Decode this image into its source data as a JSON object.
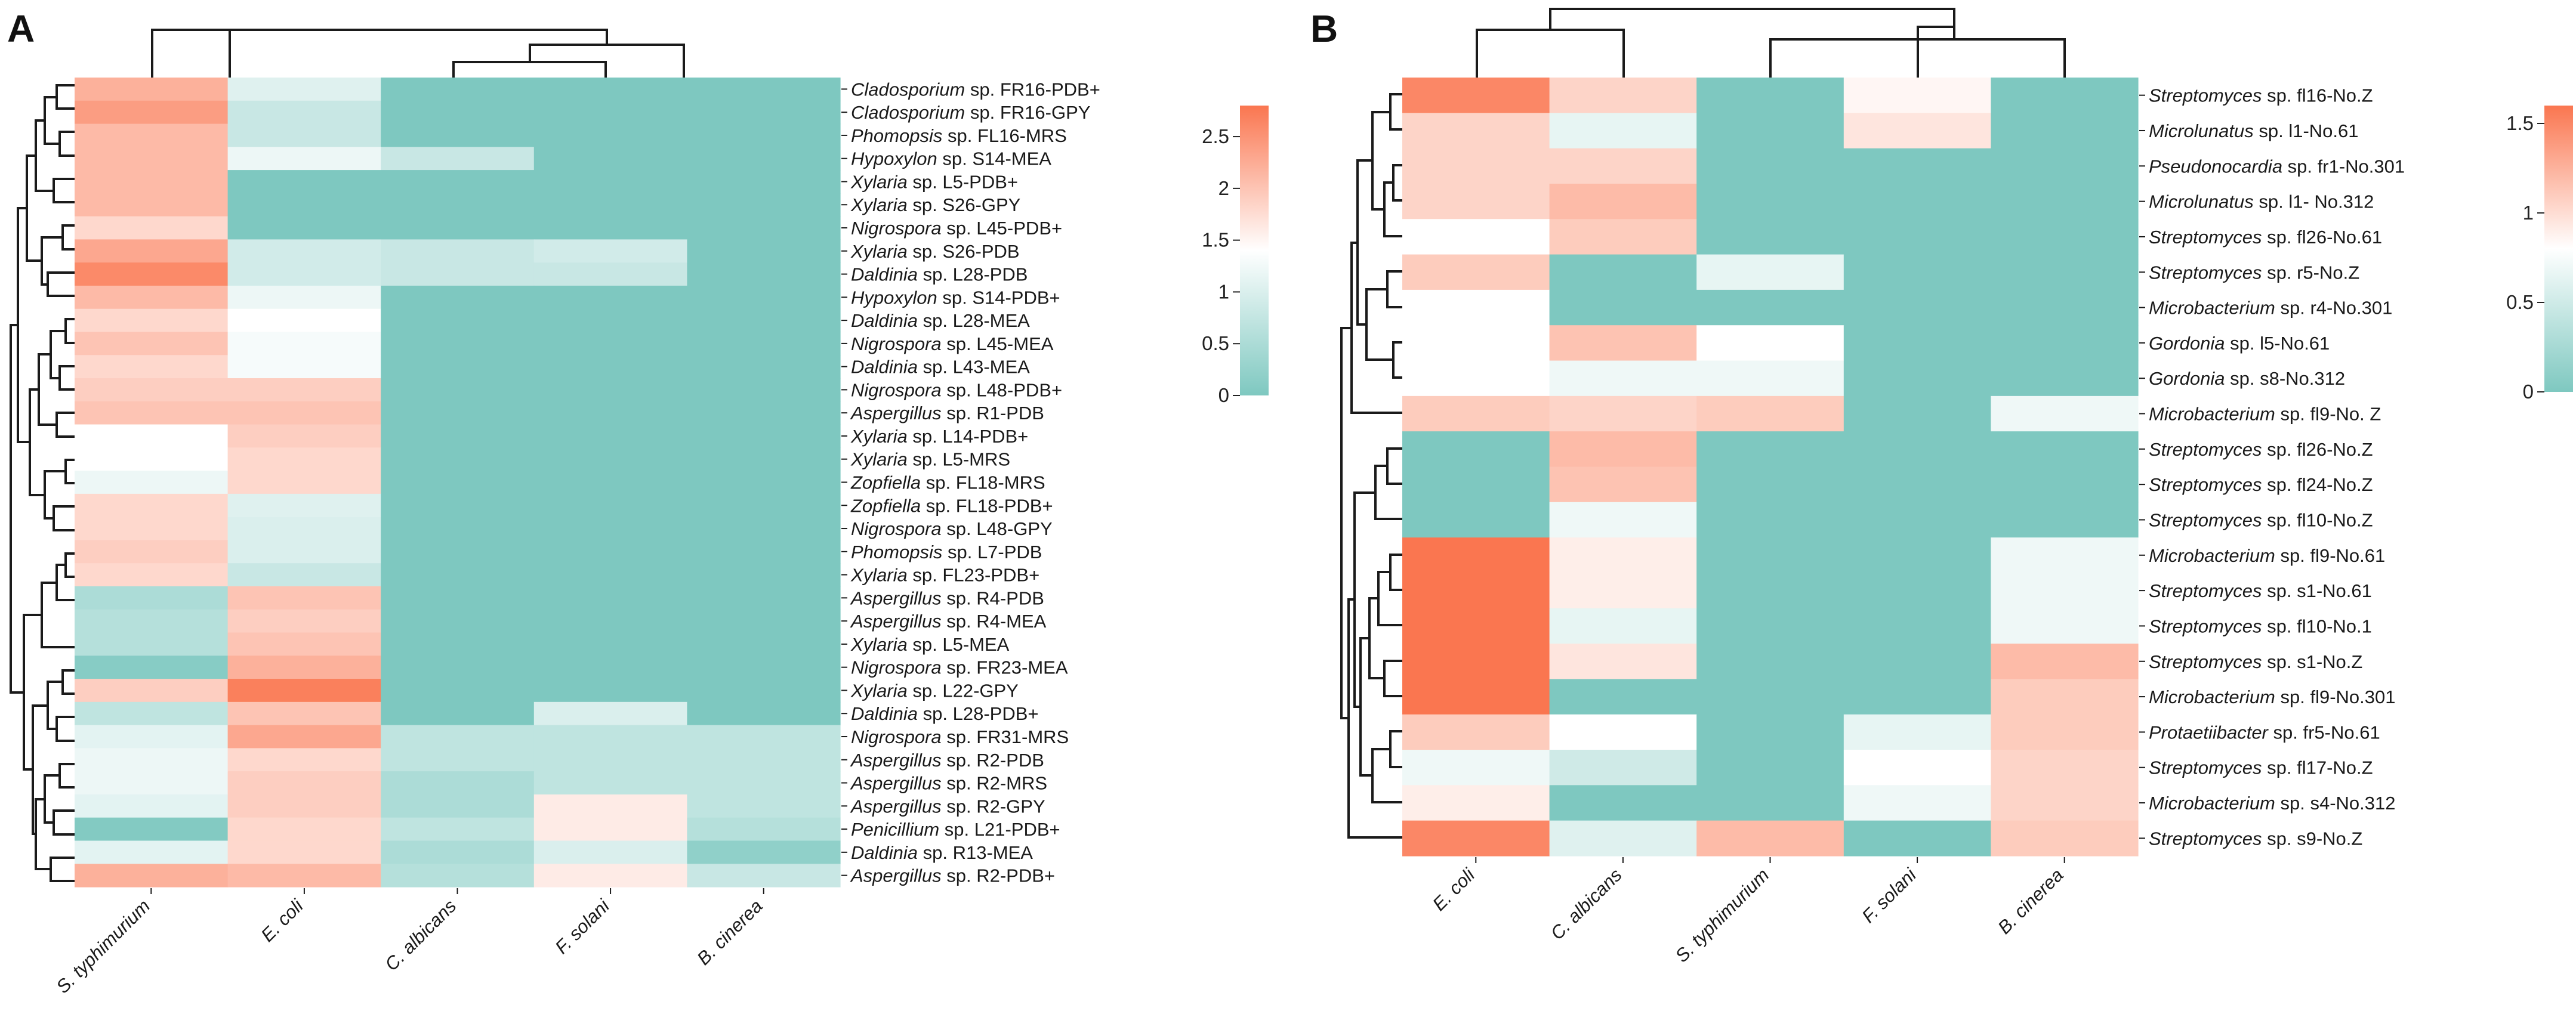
{
  "colors": {
    "low": "#7ec8c0",
    "mid": "#ffffff",
    "high": "#fa7650"
  },
  "chart_data": [
    {
      "panel": "A",
      "type": "heatmap",
      "columns": [
        "S. typhimurium",
        "E. coli",
        "C. albicans",
        "F. solani",
        "B. cinerea"
      ],
      "rows": [
        {
          "genus": "Cladosporium",
          "rest": " sp. FR16-PDB+"
        },
        {
          "genus": "Cladosporium",
          "rest": " sp. FR16-GPY"
        },
        {
          "genus": "Phomopsis",
          "rest": " sp.  FL16-MRS"
        },
        {
          "genus": "Hypoxylon",
          "rest": " sp. S14-MEA"
        },
        {
          "genus": "Xylaria",
          "rest": " sp. L5-PDB+"
        },
        {
          "genus": "Xylaria",
          "rest": " sp.  S26-GPY"
        },
        {
          "genus": "Nigrospora",
          "rest": " sp.  L45-PDB+"
        },
        {
          "genus": "Xylaria",
          "rest": " sp.  S26-PDB"
        },
        {
          "genus": "Daldinia",
          "rest": " sp.  L28-PDB"
        },
        {
          "genus": "Hypoxylon",
          "rest": " sp. S14-PDB+"
        },
        {
          "genus": "Daldinia",
          "rest": " sp.  L28-MEA"
        },
        {
          "genus": "Nigrospora",
          "rest": " sp.  L45-MEA"
        },
        {
          "genus": "Daldinia",
          "rest": " sp.  L43-MEA"
        },
        {
          "genus": "Nigrospora",
          "rest": " sp.  L48-PDB+"
        },
        {
          "genus": "Aspergillus",
          "rest": " sp. R1-PDB"
        },
        {
          "genus": "Xylaria",
          "rest": " sp. L14-PDB+"
        },
        {
          "genus": "Xylaria",
          "rest": " sp. L5-MRS"
        },
        {
          "genus": "Zopfiella",
          "rest": " sp. FL18-MRS"
        },
        {
          "genus": "Zopfiella",
          "rest": " sp. FL18-PDB+"
        },
        {
          "genus": "Nigrospora",
          "rest": " sp.  L48-GPY"
        },
        {
          "genus": "Phomopsis",
          "rest": " sp.  L7-PDB"
        },
        {
          "genus": "Xylaria",
          "rest": " sp. FL23-PDB+"
        },
        {
          "genus": "Aspergillus",
          "rest": " sp. R4-PDB"
        },
        {
          "genus": "Aspergillus",
          "rest": " sp. R4-MEA"
        },
        {
          "genus": "Xylaria",
          "rest": " sp. L5-MEA"
        },
        {
          "genus": "Nigrospora",
          "rest": " sp.  FR23-MEA"
        },
        {
          "genus": "Xylaria",
          "rest": " sp.  L22-GPY"
        },
        {
          "genus": "Daldinia",
          "rest": " sp.  L28-PDB+"
        },
        {
          "genus": "Nigrospora",
          "rest": " sp.  FR31-MRS"
        },
        {
          "genus": "Aspergillus",
          "rest": " sp.  R2-PDB"
        },
        {
          "genus": "Aspergillus",
          "rest": " sp.  R2-MRS"
        },
        {
          "genus": "Aspergillus",
          "rest": " sp.  R2-GPY"
        },
        {
          "genus": "Penicillium",
          "rest": " sp.  L21-PDB+"
        },
        {
          "genus": "Daldinia",
          "rest": " sp.  R13-MEA"
        },
        {
          "genus": "Aspergillus",
          "rest": " sp.  R2-PDB+"
        }
      ],
      "values": [
        [
          2.2,
          1.05,
          0,
          0,
          0
        ],
        [
          2.4,
          0.8,
          0,
          0,
          0
        ],
        [
          2.1,
          0.8,
          0,
          0,
          0
        ],
        [
          2.1,
          1.2,
          0.8,
          0,
          0
        ],
        [
          2.1,
          0,
          0,
          0,
          0
        ],
        [
          2.1,
          0,
          0,
          0,
          0
        ],
        [
          1.8,
          0,
          0,
          0,
          0
        ],
        [
          2.3,
          0.9,
          0.8,
          0.9,
          0
        ],
        [
          2.6,
          0.9,
          0.8,
          0.8,
          0
        ],
        [
          2.1,
          1.2,
          0,
          0,
          0
        ],
        [
          1.8,
          1.4,
          0,
          0,
          0
        ],
        [
          2.0,
          1.3,
          0,
          0,
          0
        ],
        [
          1.8,
          1.3,
          0,
          0,
          0
        ],
        [
          1.9,
          1.9,
          0,
          0,
          0
        ],
        [
          2.0,
          2.0,
          0,
          0,
          0
        ],
        [
          1.4,
          1.9,
          0,
          0,
          0
        ],
        [
          1.4,
          1.8,
          0,
          0,
          0
        ],
        [
          1.2,
          1.8,
          0,
          0,
          0
        ],
        [
          1.8,
          1.05,
          0,
          0,
          0
        ],
        [
          1.8,
          1.0,
          0,
          0,
          0
        ],
        [
          1.9,
          1.0,
          0,
          0,
          0
        ],
        [
          1.8,
          0.8,
          0,
          0,
          0
        ],
        [
          0.5,
          2.0,
          0,
          0,
          0
        ],
        [
          0.6,
          1.9,
          0,
          0,
          0
        ],
        [
          0.6,
          2.0,
          0,
          0,
          0
        ],
        [
          0.1,
          2.2,
          0,
          0,
          0
        ],
        [
          1.9,
          2.7,
          0,
          0,
          0
        ],
        [
          0.7,
          2.0,
          0,
          1.0,
          0
        ],
        [
          1.1,
          2.3,
          0.7,
          0.7,
          0.7
        ],
        [
          1.2,
          1.8,
          0.7,
          0.7,
          0.7
        ],
        [
          1.2,
          1.9,
          0.5,
          0.7,
          0.7
        ],
        [
          1.1,
          1.9,
          0.5,
          1.6,
          0.7
        ],
        [
          0.05,
          1.8,
          0.7,
          1.6,
          0.6
        ],
        [
          1.1,
          1.8,
          0.5,
          1.0,
          0.2
        ],
        [
          2.2,
          2.1,
          0.6,
          1.6,
          0.8
        ]
      ],
      "colorbar": {
        "min": 0,
        "max": 2.8,
        "ticks": [
          "0",
          "0.5",
          "1",
          "1.5",
          "2",
          "2.5"
        ],
        "tick_values": [
          0,
          0.5,
          1,
          1.5,
          2,
          2.5
        ]
      }
    },
    {
      "panel": "B",
      "type": "heatmap",
      "columns": [
        "E. coli",
        "C. albicans",
        "S. typhimurium",
        "F. solani",
        "B. cinerea"
      ],
      "rows": [
        {
          "genus": "Streptomyces",
          "rest": " sp. fl16-No.Z"
        },
        {
          "genus": "Microlunatus",
          "rest": " sp. l1-No.61"
        },
        {
          "genus": "Pseudonocardia",
          "rest": " sp. fr1-No.301"
        },
        {
          "genus": "Microlunatus",
          "rest": " sp. l1- No.312"
        },
        {
          "genus": "Streptomyces",
          "rest": " sp. fl26-No.61"
        },
        {
          "genus": "Streptomyces",
          "rest": " sp. r5-No.Z"
        },
        {
          "genus": "Microbacterium",
          "rest": " sp. r4-No.301"
        },
        {
          "genus": "Gordonia",
          "rest": " sp. l5-No.61"
        },
        {
          "genus": "Gordonia",
          "rest": " sp. s8-No.312"
        },
        {
          "genus": "Microbacterium",
          "rest": " sp. fl9-No. Z"
        },
        {
          "genus": "Streptomyces",
          "rest": " sp. fl26-No.Z"
        },
        {
          "genus": "Streptomyces",
          "rest": " sp. fl24-No.Z"
        },
        {
          "genus": "Streptomyces",
          "rest": " sp. fl10-No.Z"
        },
        {
          "genus": "Microbacterium",
          "rest": " sp. fl9-No.61"
        },
        {
          "genus": "Streptomyces",
          "rest": " sp. s1-No.61"
        },
        {
          "genus": "Streptomyces",
          "rest": " sp. fl10-No.1"
        },
        {
          "genus": "Streptomyces",
          "rest": " sp. s1-No.Z"
        },
        {
          "genus": "Microbacterium",
          "rest": " sp. fl9-No.301"
        },
        {
          "genus": "Protaetiibacter",
          "rest": " sp. fr5-No.61"
        },
        {
          "genus": "Streptomyces",
          "rest": " sp. fl17-No.Z"
        },
        {
          "genus": "Microbacterium",
          "rest": " sp. s4-No.312"
        },
        {
          "genus": "Streptomyces",
          "rest": " sp. s9-No.Z"
        }
      ],
      "values": [
        [
          1.5,
          1.05,
          0,
          0.85,
          0
        ],
        [
          1.05,
          0.65,
          0,
          0.95,
          0
        ],
        [
          1.05,
          1.05,
          0,
          0,
          0
        ],
        [
          1.05,
          1.2,
          0,
          0,
          0
        ],
        [
          0.8,
          1.1,
          0,
          0,
          0
        ],
        [
          1.1,
          0,
          0.65,
          0,
          0
        ],
        [
          0.8,
          0,
          0,
          0,
          0
        ],
        [
          0.8,
          1.15,
          0.8,
          0,
          0
        ],
        [
          0.8,
          0.7,
          0.7,
          0,
          0
        ],
        [
          1.1,
          1.05,
          1.1,
          0,
          0.7
        ],
        [
          0,
          1.2,
          0,
          0,
          0
        ],
        [
          0,
          1.15,
          0,
          0,
          0
        ],
        [
          0,
          0.7,
          0,
          0,
          0
        ],
        [
          1.6,
          0.9,
          0,
          0,
          0.7
        ],
        [
          1.6,
          0.9,
          0,
          0,
          0.7
        ],
        [
          1.6,
          0.65,
          0,
          0,
          0.7
        ],
        [
          1.6,
          0.95,
          0,
          0,
          1.2
        ],
        [
          1.6,
          0,
          0,
          0,
          1.1
        ],
        [
          1.1,
          0.8,
          0,
          0.65,
          1.1
        ],
        [
          0.7,
          0.5,
          0,
          0.8,
          1.05
        ],
        [
          0.9,
          0,
          0,
          0.7,
          1.05
        ],
        [
          1.5,
          0.6,
          1.2,
          0,
          1.1
        ]
      ],
      "colorbar": {
        "min": 0,
        "max": 1.6,
        "ticks": [
          "0",
          "0.5",
          "1",
          "1.5"
        ],
        "tick_values": [
          0,
          0.5,
          1,
          1.5
        ]
      }
    }
  ],
  "panels": {
    "a_letter": "A",
    "b_letter": "B"
  }
}
